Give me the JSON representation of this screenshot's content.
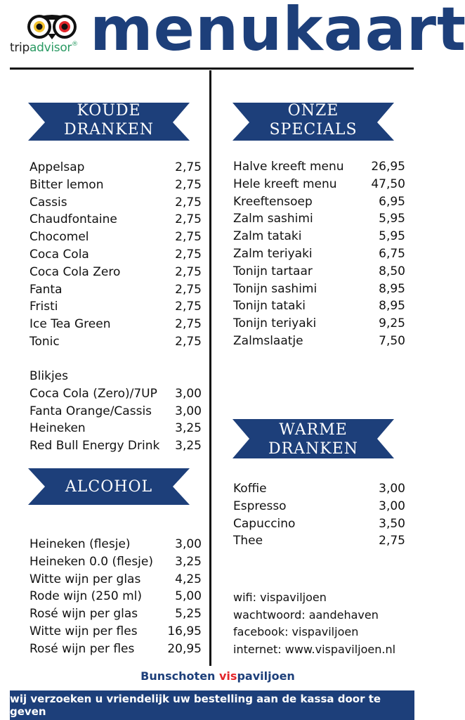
{
  "brand": {
    "trip": "trip",
    "advisor": "advisor",
    "registered": "®"
  },
  "title": "menukaart",
  "sections": {
    "koude": {
      "line1": "KOUDE",
      "line2": "DRANKEN"
    },
    "specials": {
      "line1": "ONZE",
      "line2": "SPECIALS"
    },
    "alcohol": {
      "line1": "ALCOHOL"
    },
    "warme": {
      "line1": "WARME",
      "line2": "DRANKEN"
    }
  },
  "koude_items": [
    {
      "name": "Appelsap",
      "price": "2,75"
    },
    {
      "name": "Bitter lemon",
      "price": "2,75"
    },
    {
      "name": "Cassis",
      "price": "2,75"
    },
    {
      "name": "Chaudfontaine",
      "price": "2,75"
    },
    {
      "name": "Chocomel",
      "price": "2,75"
    },
    {
      "name": "Coca Cola",
      "price": "2,75"
    },
    {
      "name": "Coca Cola Zero",
      "price": "2,75"
    },
    {
      "name": "Fanta",
      "price": "2,75"
    },
    {
      "name": "Fristi",
      "price": "2,75"
    },
    {
      "name": "Ice Tea Green",
      "price": "2,75"
    },
    {
      "name": "Tonic",
      "price": "2,75"
    }
  ],
  "blikjes_title": "Blikjes",
  "blikjes_items": [
    {
      "name": "Coca Cola (Zero)/7UP",
      "price": "3,00"
    },
    {
      "name": "Fanta Orange/Cassis",
      "price": "3,00"
    },
    {
      "name": "Heineken",
      "price": "3,25"
    },
    {
      "name": "Red Bull Energy Drink",
      "price": "3,25"
    }
  ],
  "alcohol_items": [
    {
      "name": "Heineken (flesje)",
      "price": "3,00"
    },
    {
      "name": "Heineken 0.0 (flesje)",
      "price": "3,25"
    },
    {
      "name": "Witte wijn per glas",
      "price": "4,25"
    },
    {
      "name": "Rode wijn (250 ml)",
      "price": "5,00"
    },
    {
      "name": "Rosé wijn per glas",
      "price": "5,25"
    },
    {
      "name": "Witte wijn per fles",
      "price": "16,95"
    },
    {
      "name": "Rosé wijn per fles",
      "price": "20,95"
    }
  ],
  "specials_items": [
    {
      "name": "Halve kreeft menu",
      "price": "26,95"
    },
    {
      "name": "Hele kreeft menu",
      "price": "47,50"
    },
    {
      "name": "Kreeftensoep",
      "price": "6,95"
    },
    {
      "name": "Zalm sashimi",
      "price": "5,95"
    },
    {
      "name": "Zalm tataki",
      "price": "5,95"
    },
    {
      "name": "Zalm teriyaki",
      "price": "6,75"
    },
    {
      "name": "Tonijn tartaar",
      "price": "8,50"
    },
    {
      "name": "Tonijn sashimi",
      "price": "8,95"
    },
    {
      "name": "Tonijn tataki",
      "price": "8,95"
    },
    {
      "name": "Tonijn teriyaki",
      "price": "9,25"
    },
    {
      "name": "Zalmslaatje",
      "price": "7,50"
    }
  ],
  "warme_items": [
    {
      "name": "Koffie",
      "price": "3,00"
    },
    {
      "name": "Espresso",
      "price": "3,00"
    },
    {
      "name": "Capuccino",
      "price": "3,50"
    },
    {
      "name": "Thee",
      "price": "2,75"
    }
  ],
  "info": [
    "wifi: vispaviljoen",
    "wachtwoord: aandehaven",
    "facebook: vispaviljoen",
    "internet: www.vispaviljoen.nl"
  ],
  "footer": {
    "brand_part1": "Bunschoten ",
    "brand_part2": "vis",
    "brand_part3": "paviljoen",
    "notice": "wij verzoeken u vriendelijk uw bestelling aan de kassa door te geven"
  },
  "colors": {
    "navy": "#1d3f7a",
    "green": "#2a9a63",
    "red": "#e3262b"
  }
}
